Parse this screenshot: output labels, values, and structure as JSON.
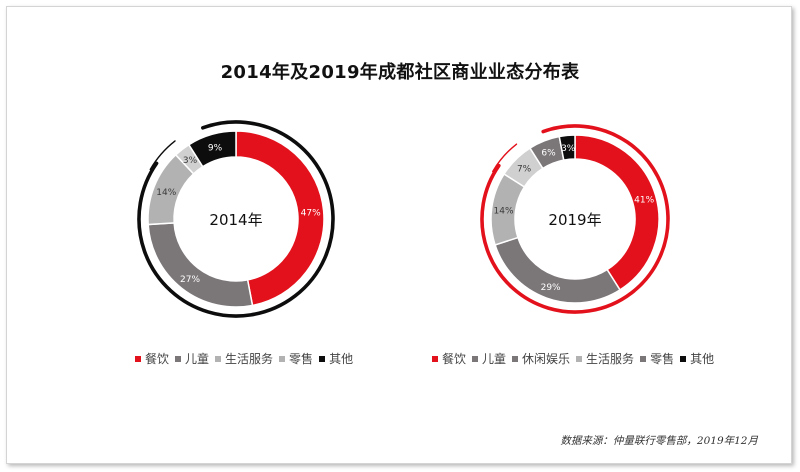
{
  "title": "2014年及2019年成都社区商业业态分布表",
  "source": "数据来源：仲量联行零售部，2019年12月",
  "chart_data": [
    {
      "type": "pie",
      "variant": "donut",
      "center_label": "2014年",
      "categories": [
        "餐饮",
        "儿童",
        "生活服务",
        "零售",
        "其他"
      ],
      "values": [
        47,
        27,
        14,
        3,
        9
      ],
      "labels": [
        "47%",
        "27%",
        "14%",
        "3%",
        "9%"
      ],
      "colors": [
        "#e3111b",
        "#7b7677",
        "#b2b2b2",
        "#d0d0d0",
        "#0d0d0d"
      ],
      "legend_colors": [
        "#e3111b",
        "#7b7677",
        "#b2b2b2",
        "#b2b2b2",
        "#0d0d0d"
      ],
      "accent_ring_color": "#0d0d0d",
      "legend": "bottom"
    },
    {
      "type": "pie",
      "variant": "donut",
      "center_label": "2019年",
      "categories": [
        "餐饮",
        "儿童",
        "休闲娱乐",
        "生活服务",
        "零售",
        "其他"
      ],
      "values": [
        41,
        29,
        14,
        7,
        6,
        3
      ],
      "labels": [
        "41%",
        "29%",
        "14%",
        "7%",
        "6%",
        "3%"
      ],
      "colors": [
        "#e3111b",
        "#7b7677",
        "#b2b2b2",
        "#d0d0d0",
        "#7b7677",
        "#0d0d0d"
      ],
      "legend_colors": [
        "#e3111b",
        "#7b7677",
        "#7b7677",
        "#b2b2b2",
        "#7b7677",
        "#0d0d0d"
      ],
      "accent_ring_color": "#e3111b",
      "legend": "bottom"
    }
  ]
}
